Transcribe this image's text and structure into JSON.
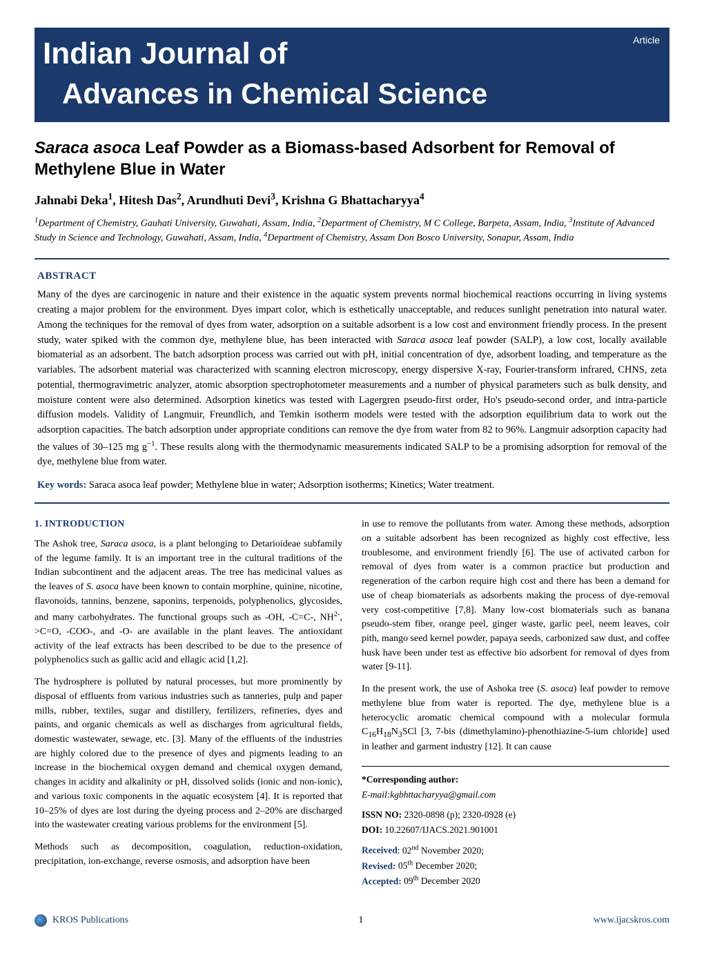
{
  "header": {
    "journal_line1": "Indian Journal of",
    "journal_line2": "Advances in Chemical Science",
    "badge": "Article",
    "banner_bg": "#1b3a6b",
    "banner_fg": "#ffffff"
  },
  "article": {
    "title_html": "<span class='ital'>Saraca asoca</span> Leaf Powder as a Biomass-based Adsorbent for Removal of Methylene Blue in Water",
    "authors_html": "Jahnabi Deka<sup>1</sup>, Hitesh Das<sup>2</sup>, Arundhuti Devi<sup>3</sup>, Krishna G Bhattacharyya<sup>4</sup>",
    "affiliations_html": "<sup>1</sup>Department of Chemistry, Gauhati University, Guwahati, Assam, India, <sup>2</sup>Department of Chemistry, M C College, Barpeta, Assam, India, <sup>3</sup>Institute of Advanced Study in Science and Technology, Guwahati, Assam, India, <sup>4</sup>Department of Chemistry, Assam Don Bosco University, Sonapur, Assam, India"
  },
  "abstract": {
    "heading": "ABSTRACT",
    "text_html": "Many of the dyes are carcinogenic in nature and their existence in the aquatic system prevents normal biochemical reactions occurring in living systems creating a major problem for the environment. Dyes impart color, which is esthetically unacceptable, and reduces sunlight penetration into natural water. Among the techniques for the removal of dyes from water, adsorption on a suitable adsorbent is a low cost and environment friendly process. In the present study, water spiked with the common dye, methylene blue, has been interacted with <span class='ital'>Saraca asoca</span> leaf powder (SALP), a low cost, locally available biomaterial as an adsorbent. The batch adsorption process was carried out with pH, initial concentration of dye, adsorbent loading, and temperature as the variables. The adsorbent material was characterized with scanning electron microscopy, energy dispersive X-ray, Fourier-transform infrared, CHNS, zeta potential, thermogravimetric analyzer, atomic absorption spectrophotometer measurements and a number of physical parameters such as bulk density, and moisture content were also determined. Adsorption kinetics was tested with Lagergren pseudo-first order, Ho's pseudo-second order, and intra-particle diffusion models. Validity of Langmuir, Freundlich, and Temkin isotherm models were tested with the adsorption equilibrium data to work out the adsorption capacities. The batch adsorption under appropriate conditions can remove the dye from water from 82 to 96%. Langmuir adsorption capacity had the values of 30–125 mg g<sup>−1</sup>. These results along with the thermodynamic measurements indicated SALP to be a promising adsorption for removal of the dye, methylene blue from water.",
    "keywords_label": "Key words:",
    "keywords_text": " Saraca asoca leaf powder; Methylene blue in water; Adsorption isotherms; Kinetics; Water treatment."
  },
  "body": {
    "intro_heading": "1. INTRODUCTION",
    "col1_paras": [
      "The Ashok tree, <span class='ital'>Saraca asoca</span>, is a plant belonging to Detarioideae subfamily of the legume family. It is an important tree in the cultural traditions of the Indian subcontinent and the adjacent areas. The tree has medicinal values as the leaves of <span class='ital'>S. asoca</span> have been known to contain morphine, quinine, nicotine, flavonoids, tannins, benzene, saponins, terpenoids, polyphenolics, glycosides, and many carbohydrates. The functional groups such as -OH, -C=C-, NH<sup>2-</sup>, >C=O, -COO-, and -O- are available in the plant leaves. The antioxidant activity of the leaf extracts has been described to be due to the presence of polyphenolics such as gallic acid and ellagic acid [1,2].",
      "The hydrosphere is polluted by natural processes, but more prominently by disposal of effluents from various industries such as tanneries, pulp and paper mills, rubber, textiles, sugar and distillery, fertilizers, refineries, dyes and paints, and organic chemicals as well as discharges from agricultural fields, domestic wastewater, sewage, etc. [3]. Many of the effluents of the industries are highly colored due to the presence of dyes and pigments leading to an increase in the biochemical oxygen demand and chemical oxygen demand, changes in acidity and alkalinity or pH, dissolved solids (ionic and non-ionic), and various toxic components in the aquatic ecosystem [4]. It is reported that 10–25% of dyes are lost during the dyeing process and 2–20% are discharged into the wastewater creating various problems for the environment [5].",
      "Methods such as decomposition, coagulation, reduction-oxidation, precipitation, ion-exchange, reverse osmosis, and adsorption have been"
    ],
    "col2_paras": [
      "in use to remove the pollutants from water. Among these methods, adsorption on a suitable adsorbent has been recognized as highly cost effective, less troublesome, and environment friendly [6]. The use of activated carbon for removal of dyes from water is a common practice but production and regeneration of the carbon require high cost and there has been a demand for use of cheap biomaterials as adsorbents making the process of dye-removal very cost-competitive [7,8]. Many low-cost biomaterials such as banana pseudo-stem fiber, orange peel, ginger waste, garlic peel, neem leaves, coir pith, mango seed kernel powder, papaya seeds, carbonized saw dust, and coffee husk have been under test as effective bio adsorbent for removal of dyes from water [9-11].",
      "In the present work, the use of Ashoka tree (<span class='ital'>S. asoca</span>) leaf powder to remove methylene blue from water is reported. The dye, methylene blue is a heterocyclic aromatic chemical compound with a molecular formula C<sub>16</sub>H<sub>18</sub>N<sub>3</sub>SCl [3, 7-bis (dimethylamino)-phenothiazine-5-ium chloride] used in leather and garment industry [12]. It can cause"
    ]
  },
  "info": {
    "corresponding_label": "*Corresponding author:",
    "corresponding_email": "E-mail:kgbhttacharyya@gmail.com",
    "issn_label": "ISSN NO:",
    "issn_value": " 2320-0898 (p); 2320-0928 (e)",
    "doi_label": "DOI:",
    "doi_value": " 10.22607/IJACS.2021.901001",
    "received_label": "Received",
    "received_value": ": 02<sup>nd</sup> November 2020;",
    "revised_label": "Revised:",
    "revised_value": " 05<sup>th</sup> December 2020;",
    "accepted_label": "Accepted:",
    "accepted_value": " 09<sup>th</sup> December 2020"
  },
  "footer": {
    "publisher": "KROS Publications",
    "page_number": "1",
    "url": "www.ijacskros.com"
  },
  "colors": {
    "accent": "#1b3a6b",
    "text": "#000000",
    "background": "#ffffff"
  }
}
